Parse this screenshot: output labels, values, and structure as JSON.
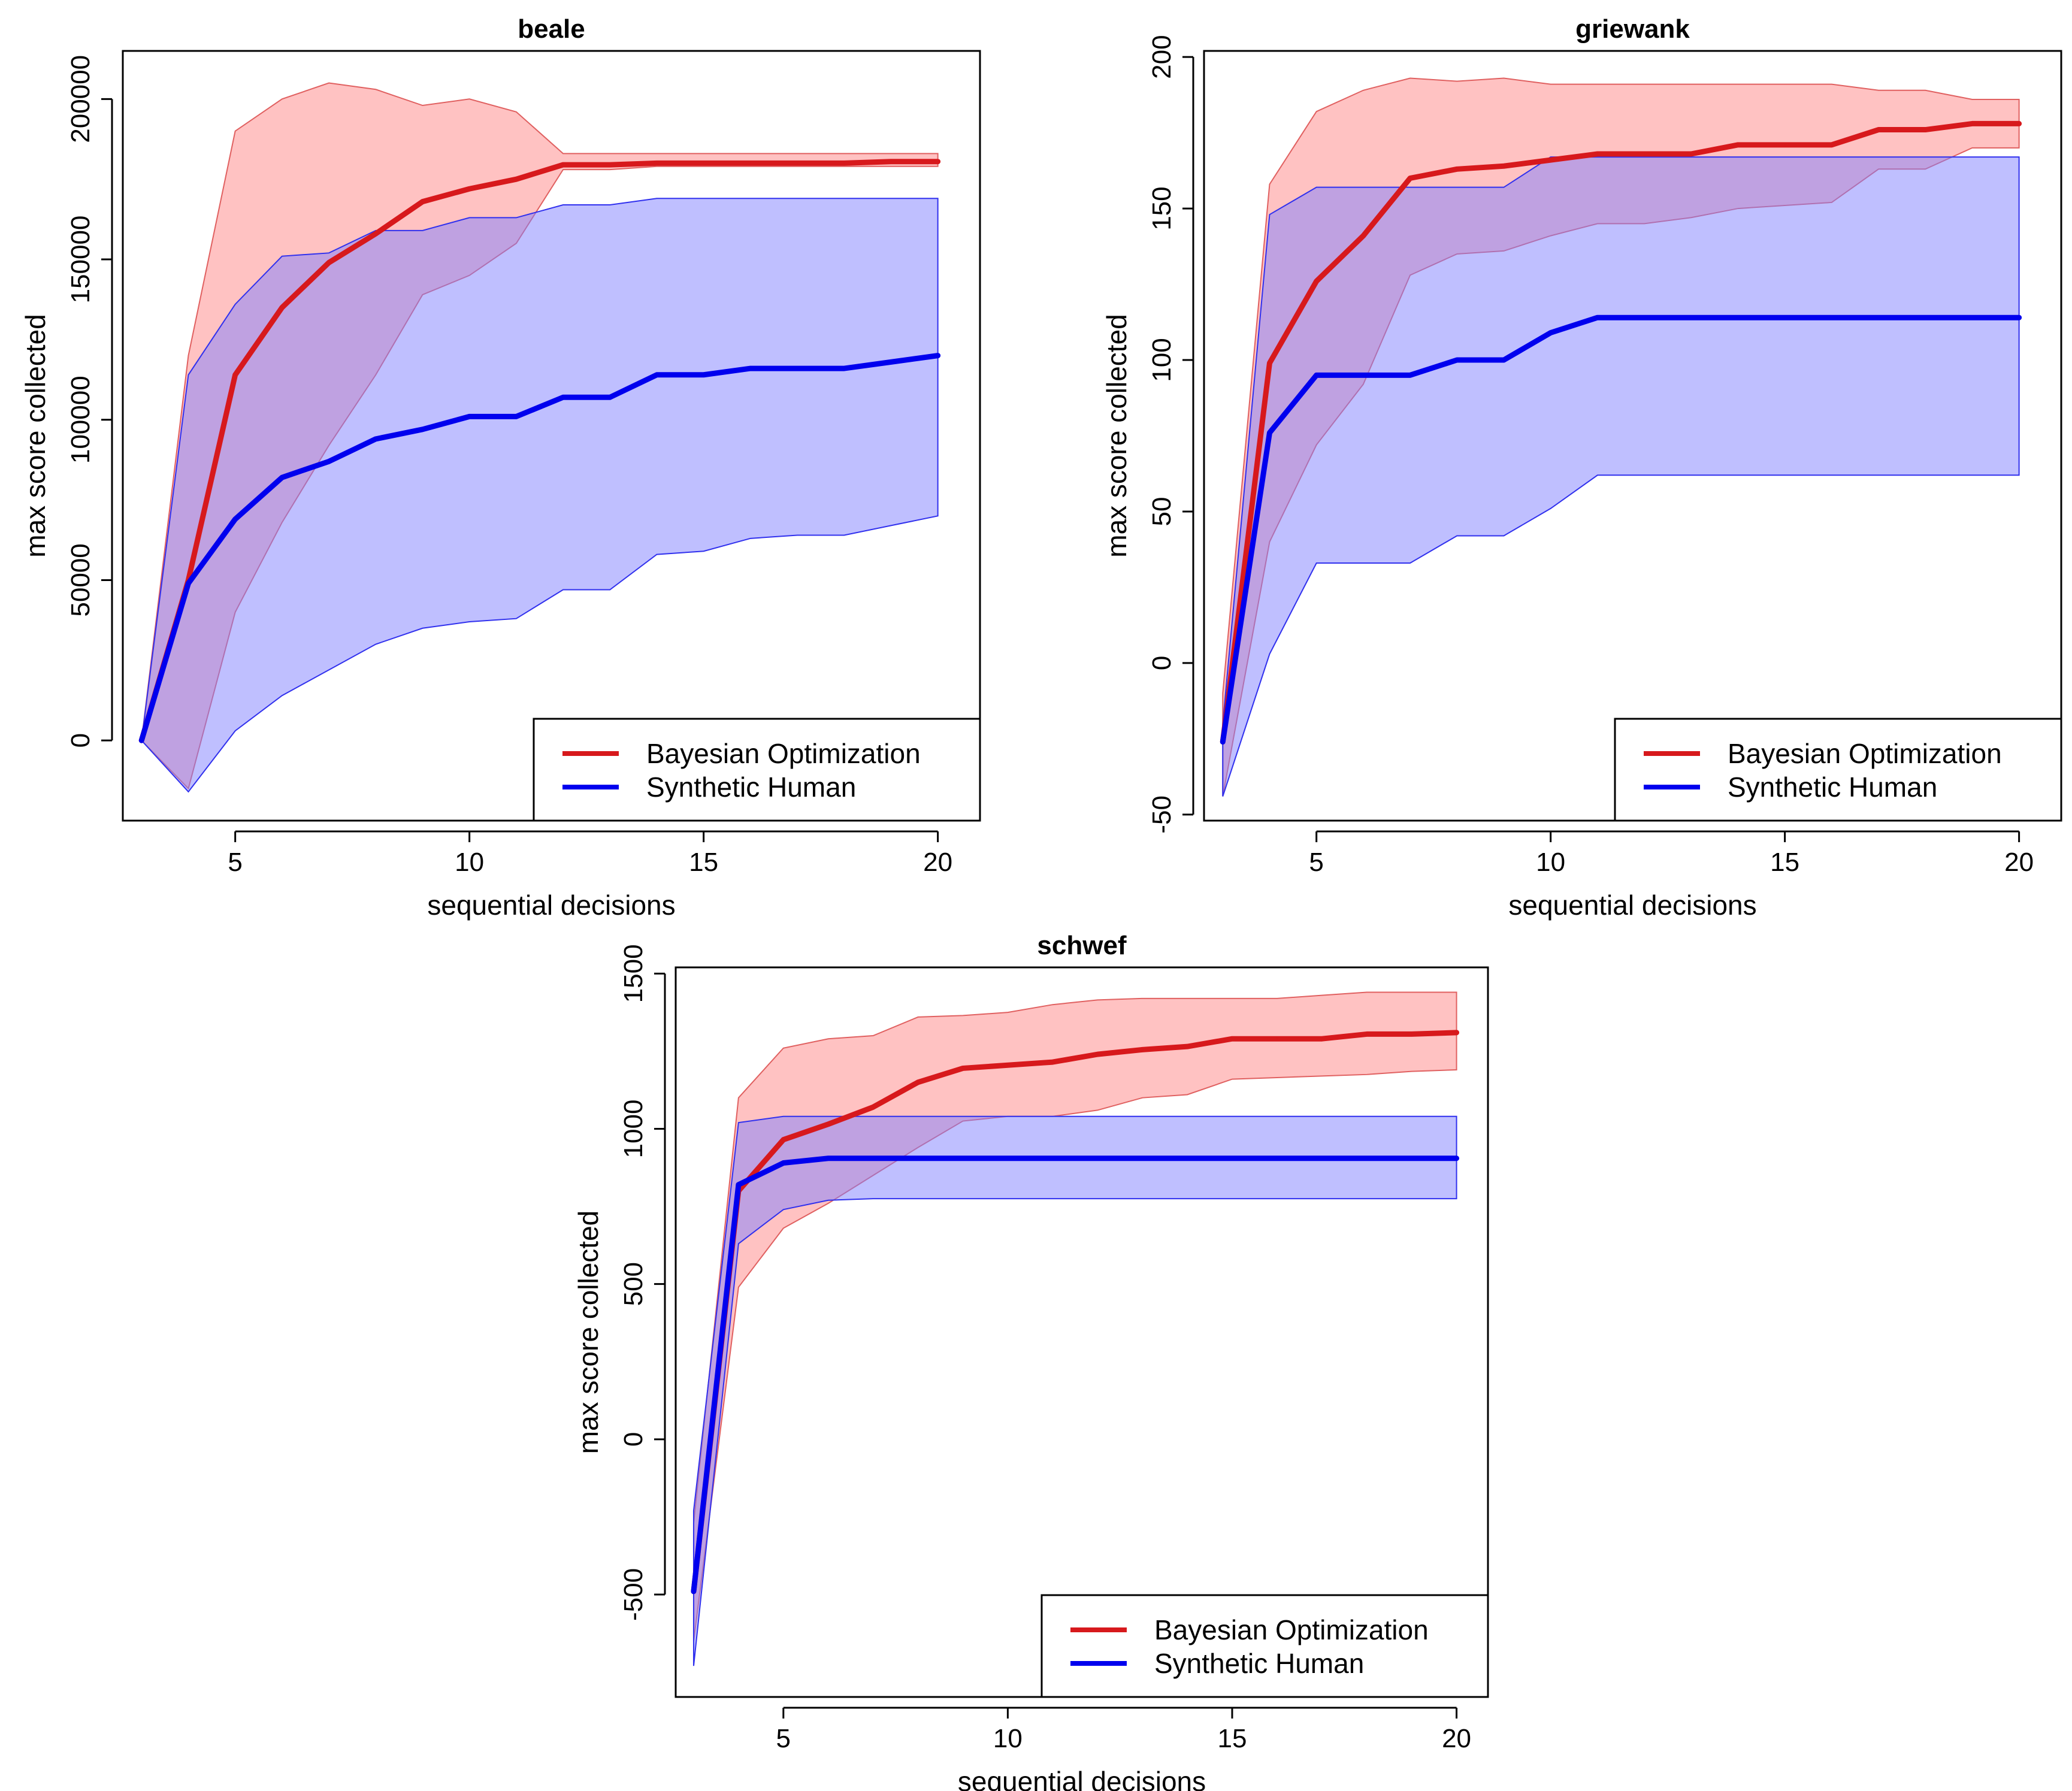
{
  "figure": {
    "legend": {
      "bo_label": "Bayesian Optimization",
      "human_label": "Synthetic Human"
    },
    "colors": {
      "bo_line": "#d7191c",
      "bo_band": "#ff9999",
      "human_line": "#0000ee",
      "human_band": "#8080ff"
    }
  },
  "chart_data": [
    {
      "type": "line",
      "title": "beale",
      "xlabel": "sequential decisions",
      "ylabel": "max score collected",
      "xlim": [
        2.6,
        20.9
      ],
      "ylim": [
        -25000,
        215000
      ],
      "xticks": [
        5,
        10,
        15,
        20
      ],
      "xtick_labels": [
        "5",
        "10",
        "15",
        "20"
      ],
      "yticks": [
        0,
        50000,
        100000,
        150000,
        200000
      ],
      "ytick_labels": [
        "0",
        "50000",
        "100000",
        "150000",
        "200000"
      ],
      "legend_position": "bottom-right",
      "x": [
        3,
        4,
        5,
        6,
        7,
        8,
        9,
        10,
        11,
        12,
        13,
        14,
        15,
        16,
        17,
        18,
        19,
        20
      ],
      "series": [
        {
          "name": "Bayesian Optimization",
          "mean": [
            0,
            50000,
            114000,
            135000,
            149000,
            158000,
            168000,
            172000,
            175000,
            179500,
            179500,
            180000,
            180000,
            180000,
            180000,
            180000,
            180500,
            180500
          ],
          "lower": [
            0,
            -15000,
            40000,
            68000,
            92000,
            114000,
            139000,
            145000,
            155000,
            178000,
            178000,
            179000,
            179000,
            179000,
            179000,
            179000,
            179000,
            179000
          ],
          "upper": [
            0,
            120000,
            190000,
            200000,
            205000,
            203000,
            198000,
            200000,
            196000,
            183000,
            183000,
            183000,
            183000,
            183000,
            183000,
            183000,
            183000,
            183000
          ]
        },
        {
          "name": "Synthetic Human",
          "mean": [
            0,
            49000,
            69000,
            82000,
            87000,
            94000,
            97000,
            101000,
            101000,
            107000,
            107000,
            114000,
            114000,
            116000,
            116000,
            116000,
            118000,
            120000
          ],
          "lower": [
            0,
            -16000,
            3000,
            14000,
            22000,
            30000,
            35000,
            37000,
            38000,
            47000,
            47000,
            58000,
            59000,
            63000,
            64000,
            64000,
            67000,
            70000
          ],
          "upper": [
            0,
            114000,
            136000,
            151000,
            152000,
            159000,
            159000,
            163000,
            163000,
            167000,
            167000,
            169000,
            169000,
            169000,
            169000,
            169000,
            169000,
            169000
          ]
        }
      ]
    },
    {
      "type": "line",
      "title": "griewank",
      "xlabel": "sequential decisions",
      "ylabel": "max score collected",
      "xlim": [
        2.6,
        20.9
      ],
      "ylim": [
        -52,
        202
      ],
      "xticks": [
        5,
        10,
        15,
        20
      ],
      "xtick_labels": [
        "5",
        "10",
        "15",
        "20"
      ],
      "yticks": [
        -50,
        0,
        50,
        100,
        150,
        200
      ],
      "ytick_labels": [
        "-50",
        "0",
        "50",
        "100",
        "150",
        "200"
      ],
      "legend_position": "bottom-right",
      "x": [
        3,
        4,
        5,
        6,
        7,
        8,
        9,
        10,
        11,
        12,
        13,
        14,
        15,
        16,
        17,
        18,
        19,
        20
      ],
      "series": [
        {
          "name": "Bayesian Optimization",
          "mean": [
            -26,
            99,
            126,
            141,
            160,
            163,
            164,
            166,
            168,
            168,
            168,
            171,
            171,
            171,
            176,
            176,
            178,
            178
          ],
          "lower": [
            -44,
            40,
            72,
            92,
            128,
            135,
            136,
            141,
            145,
            145,
            147,
            150,
            151,
            152,
            163,
            163,
            170,
            170
          ],
          "upper": [
            -10,
            158,
            182,
            189,
            193,
            192,
            193,
            191,
            191,
            191,
            191,
            191,
            191,
            191,
            189,
            189,
            186,
            186
          ]
        },
        {
          "name": "Synthetic Human",
          "mean": [
            -26,
            76,
            95,
            95,
            95,
            100,
            100,
            109,
            114,
            114,
            114,
            114,
            114,
            114,
            114,
            114,
            114,
            114
          ],
          "lower": [
            -44,
            3,
            33,
            33,
            33,
            42,
            42,
            51,
            62,
            62,
            62,
            62,
            62,
            62,
            62,
            62,
            62,
            62
          ],
          "upper": [
            -20,
            148,
            157,
            157,
            157,
            157,
            157,
            167,
            167,
            167,
            167,
            167,
            167,
            167,
            167,
            167,
            167,
            167
          ]
        }
      ]
    },
    {
      "type": "line",
      "title": "schwef",
      "xlabel": "sequential decisions",
      "ylabel": "max score collected",
      "xlim": [
        2.6,
        20.7
      ],
      "ylim": [
        -830,
        1520
      ],
      "xticks": [
        5,
        10,
        15,
        20
      ],
      "xtick_labels": [
        "5",
        "10",
        "15",
        "20"
      ],
      "yticks": [
        -500,
        0,
        500,
        1000,
        1500
      ],
      "ytick_labels": [
        "-500",
        "0",
        "500",
        "1000",
        "1500"
      ],
      "legend_position": "bottom-right",
      "x": [
        3,
        4,
        5,
        6,
        7,
        8,
        9,
        10,
        11,
        12,
        13,
        14,
        15,
        16,
        17,
        18,
        19,
        20
      ],
      "series": [
        {
          "name": "Bayesian Optimization",
          "mean": [
            -490,
            800,
            965,
            1015,
            1070,
            1150,
            1195,
            1205,
            1215,
            1240,
            1255,
            1265,
            1290,
            1290,
            1290,
            1305,
            1305,
            1310
          ],
          "lower": [
            -650,
            490,
            680,
            760,
            850,
            940,
            1025,
            1040,
            1040,
            1060,
            1100,
            1110,
            1160,
            1165,
            1170,
            1175,
            1185,
            1190
          ],
          "upper": [
            -270,
            1100,
            1260,
            1290,
            1300,
            1360,
            1365,
            1375,
            1400,
            1415,
            1420,
            1420,
            1420,
            1420,
            1430,
            1440,
            1440,
            1440
          ]
        },
        {
          "name": "Synthetic Human",
          "mean": [
            -490,
            820,
            890,
            905,
            905,
            905,
            905,
            905,
            905,
            905,
            905,
            905,
            905,
            905,
            905,
            905,
            905,
            905
          ],
          "lower": [
            -730,
            630,
            740,
            770,
            775,
            775,
            775,
            775,
            775,
            775,
            775,
            775,
            775,
            775,
            775,
            775,
            775,
            775
          ],
          "upper": [
            -230,
            1020,
            1040,
            1040,
            1040,
            1040,
            1040,
            1040,
            1040,
            1040,
            1040,
            1040,
            1040,
            1040,
            1040,
            1040,
            1040,
            1040
          ]
        }
      ]
    }
  ]
}
